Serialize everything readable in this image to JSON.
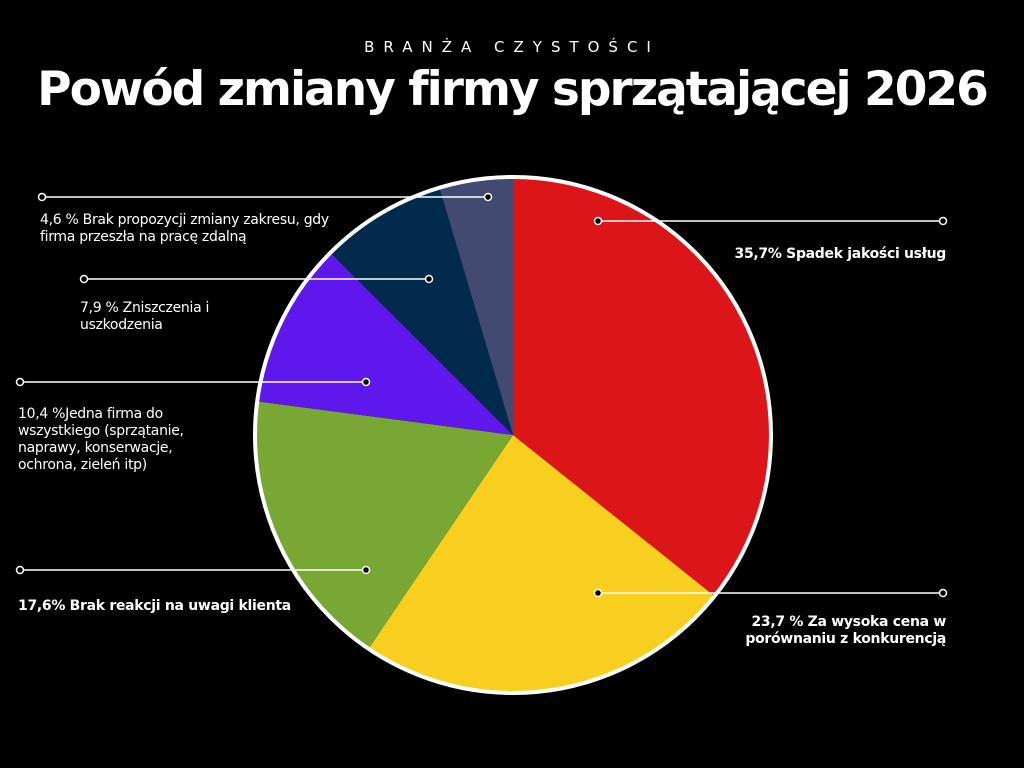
{
  "header": {
    "subtitle": "BRANŻA CZYSTOŚCI",
    "title": "Powód zmiany firmy sprzątającej 2026"
  },
  "labels": {
    "jakosc": "35,7% Spadek jakości usług",
    "cena": "23,7 % Za wysoka cena w porównaniu z konkurencją",
    "reakcja": "17,6% Brak reakcji na uwagi klienta",
    "jedna_firma": "10,4 %Jedna firma do wszystkiego (sprzątanie, naprawy, konserwacje, ochrona, zieleń itp)",
    "zniszczenia": "7,9 % Zniszczenia i uszkodzenia",
    "zakres": "4,6 % Brak propozycji zmiany zakresu, gdy firma przeszła na pracę zdalną"
  },
  "chart_data": {
    "type": "pie",
    "title": "Powód zmiany firmy sprzątającej 2026",
    "slices": [
      {
        "label": "35,7% Spadek jakości usług",
        "value": 35.7,
        "color": "#dc1519"
      },
      {
        "label": "23,7 % Za wysoka cena w porównaniu z konkurencją",
        "value": 23.7,
        "color": "#f9cf1f"
      },
      {
        "label": "17,6% Brak reakcji na uwagi klienta",
        "value": 17.6,
        "color": "#79a733"
      },
      {
        "label": "10,4 %Jedna firma do wszystkiego (sprzątanie, naprawy, konserwacje, ochrona, zieleń itp)",
        "value": 10.4,
        "color": "#5f18ec"
      },
      {
        "label": "7,9 % Zniszczenia i uszkodzenia",
        "value": 7.9,
        "color": "#022a4c"
      },
      {
        "label": "4,6 % Brak propozycji zmiany zakresu, gdy firma przeszła na pracę zdalną",
        "value": 4.6,
        "color": "#434a72"
      }
    ],
    "legend": "callouts"
  }
}
